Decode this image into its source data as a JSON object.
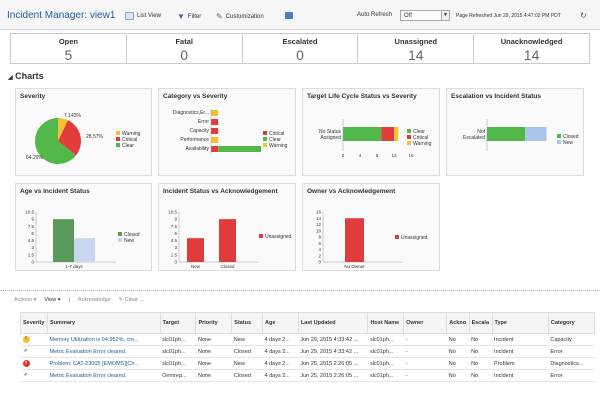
{
  "header": {
    "title": "Incident Manager: view1",
    "list_view": "List View",
    "filter": "Filter",
    "customization": "Customization",
    "auto_refresh_label": "Auto Refresh",
    "auto_refresh_value": "Off",
    "refreshed": "Page Refreshed Jun 29, 2015 4:47:02 PM PDT"
  },
  "counts": [
    {
      "label": "Open",
      "value": "5"
    },
    {
      "label": "Fatal",
      "value": "0"
    },
    {
      "label": "Escalated",
      "value": "0"
    },
    {
      "label": "Unassigned",
      "value": "14"
    },
    {
      "label": "Unacknowledged",
      "value": "14"
    }
  ],
  "section_title": "Charts",
  "charts": {
    "severity": {
      "title": "Severity",
      "slices": [
        {
          "name": "Warning",
          "pct": 7.143,
          "label": "7.143%",
          "color": "#f2c230"
        },
        {
          "name": "Critical",
          "pct": 28.57,
          "label": "28.57%",
          "color": "#e23b3b"
        },
        {
          "name": "Clear",
          "pct": 64.29,
          "label": "64.29%",
          "color": "#52b84a"
        }
      ]
    },
    "category": {
      "title": "Category vs Severity",
      "categories": [
        "Diagnostics,Er...",
        "Error",
        "Capacity",
        "Performance",
        "Availability"
      ],
      "series": [
        {
          "name": "Critical",
          "color": "#e23b3b",
          "values": [
            0,
            1,
            1,
            0,
            1
          ]
        },
        {
          "name": "Clear",
          "color": "#52b84a",
          "values": [
            0,
            0,
            0,
            0,
            6
          ]
        },
        {
          "name": "Warning",
          "color": "#f2c230",
          "values": [
            1,
            0,
            0,
            1,
            0
          ]
        }
      ],
      "xmax": 7
    },
    "lifecycle": {
      "title": "Target Life Cycle Status vs Severity",
      "category": "No Status Assigned",
      "series": [
        {
          "name": "Clear",
          "color": "#52b84a",
          "value": 9
        },
        {
          "name": "Critical",
          "color": "#e23b3b",
          "value": 3
        },
        {
          "name": "Warning",
          "color": "#f2c230",
          "value": 1
        }
      ],
      "ticks": [
        "0",
        "4",
        "8",
        "12",
        "16"
      ],
      "xmax": 16
    },
    "escalation": {
      "title": "Escalation vs Incident Status",
      "category": "Not Escalated",
      "series": [
        {
          "name": "Closed",
          "color": "#52b84a",
          "value": 9
        },
        {
          "name": "New",
          "color": "#a9c4e6",
          "value": 5
        }
      ],
      "xmax": 16
    },
    "age": {
      "title": "Age vs Incident Status",
      "category": "1-7 days",
      "yticks": [
        "10.5",
        "9",
        "7.5",
        "6",
        "4.5",
        "3",
        "1.5",
        "0"
      ],
      "ymax": 10.5,
      "series": [
        {
          "name": "Closed",
          "color": "#5a9a5a",
          "value": 9
        },
        {
          "name": "New",
          "color": "#c9d6ef",
          "value": 5
        }
      ]
    },
    "ack": {
      "title": "Incident Status vs Acknowledgement",
      "categories": [
        "New",
        "Closed"
      ],
      "values": [
        5,
        9
      ],
      "yticks": [
        "10.5",
        "9",
        "7.5",
        "6",
        "4.5",
        "3",
        "1.5",
        "0"
      ],
      "ymax": 10.5,
      "legend": "Unassigned",
      "color": "#e23b3b"
    },
    "owner": {
      "title": "Owner vs Acknowledgement",
      "category": "No Owner",
      "value": 14,
      "yticks": [
        "16",
        "14",
        "12",
        "10",
        "8",
        "6",
        "4",
        "2",
        "0"
      ],
      "ymax": 16,
      "legend": "Unassigned",
      "color": "#e23b3b"
    }
  },
  "actions": {
    "actions": "Actions",
    "view": "View",
    "acknowledge": "Acknowledge",
    "clear": "Clear ..."
  },
  "table": {
    "headers": [
      "Severity",
      "Summary",
      "Target",
      "Priority",
      "Status",
      "Age",
      "Last Updated",
      "Host Name",
      "Owner",
      "Ackno",
      "Escala",
      "Type",
      "Category"
    ],
    "rows": [
      {
        "sev": "warning",
        "summary": "Memory Utilization is 94.952%, cro...",
        "target": "slc01ph...",
        "priority": "None",
        "status": "New",
        "age": "4 days 2...",
        "updated": "Jun 29, 2015 4:33:42 ...",
        "host": "slc01ph...",
        "owner": "-",
        "ack": "No",
        "esc": "No",
        "type": "Incident",
        "category": "Capacity"
      },
      {
        "sev": "clear",
        "summary": "Metric Evaluation Error cleared.",
        "target": "slc01ph...",
        "priority": "None",
        "status": "Closed",
        "age": "4 days 2...",
        "updated": "Jun 29, 2015 4:33:42 ...",
        "host": "slc01ph...",
        "owner": "-",
        "ack": "No",
        "esc": "No",
        "type": "Incident",
        "category": "Error"
      },
      {
        "sev": "critical",
        "summary": "Problem: CAT-23005 [EMOMS][Ch...",
        "target": "slc01ph...",
        "priority": "None",
        "status": "New",
        "age": "4 days 2...",
        "updated": "Jun 25, 2015 2:26:05 ...",
        "host": "slc01ph...",
        "owner": "-",
        "ack": "No",
        "esc": "No",
        "type": "Problem",
        "category": "Diagnostics..."
      },
      {
        "sev": "clear",
        "summary": "Metric Evaluation Error cleared.",
        "target": "Oemrep...",
        "priority": "None",
        "status": "Closed",
        "age": "4 days 2...",
        "updated": "Jun 25, 2015 2:26:05 ...",
        "host": "slc01ph...",
        "owner": "-",
        "ack": "No",
        "esc": "No",
        "type": "Incident",
        "category": "Error"
      }
    ]
  }
}
